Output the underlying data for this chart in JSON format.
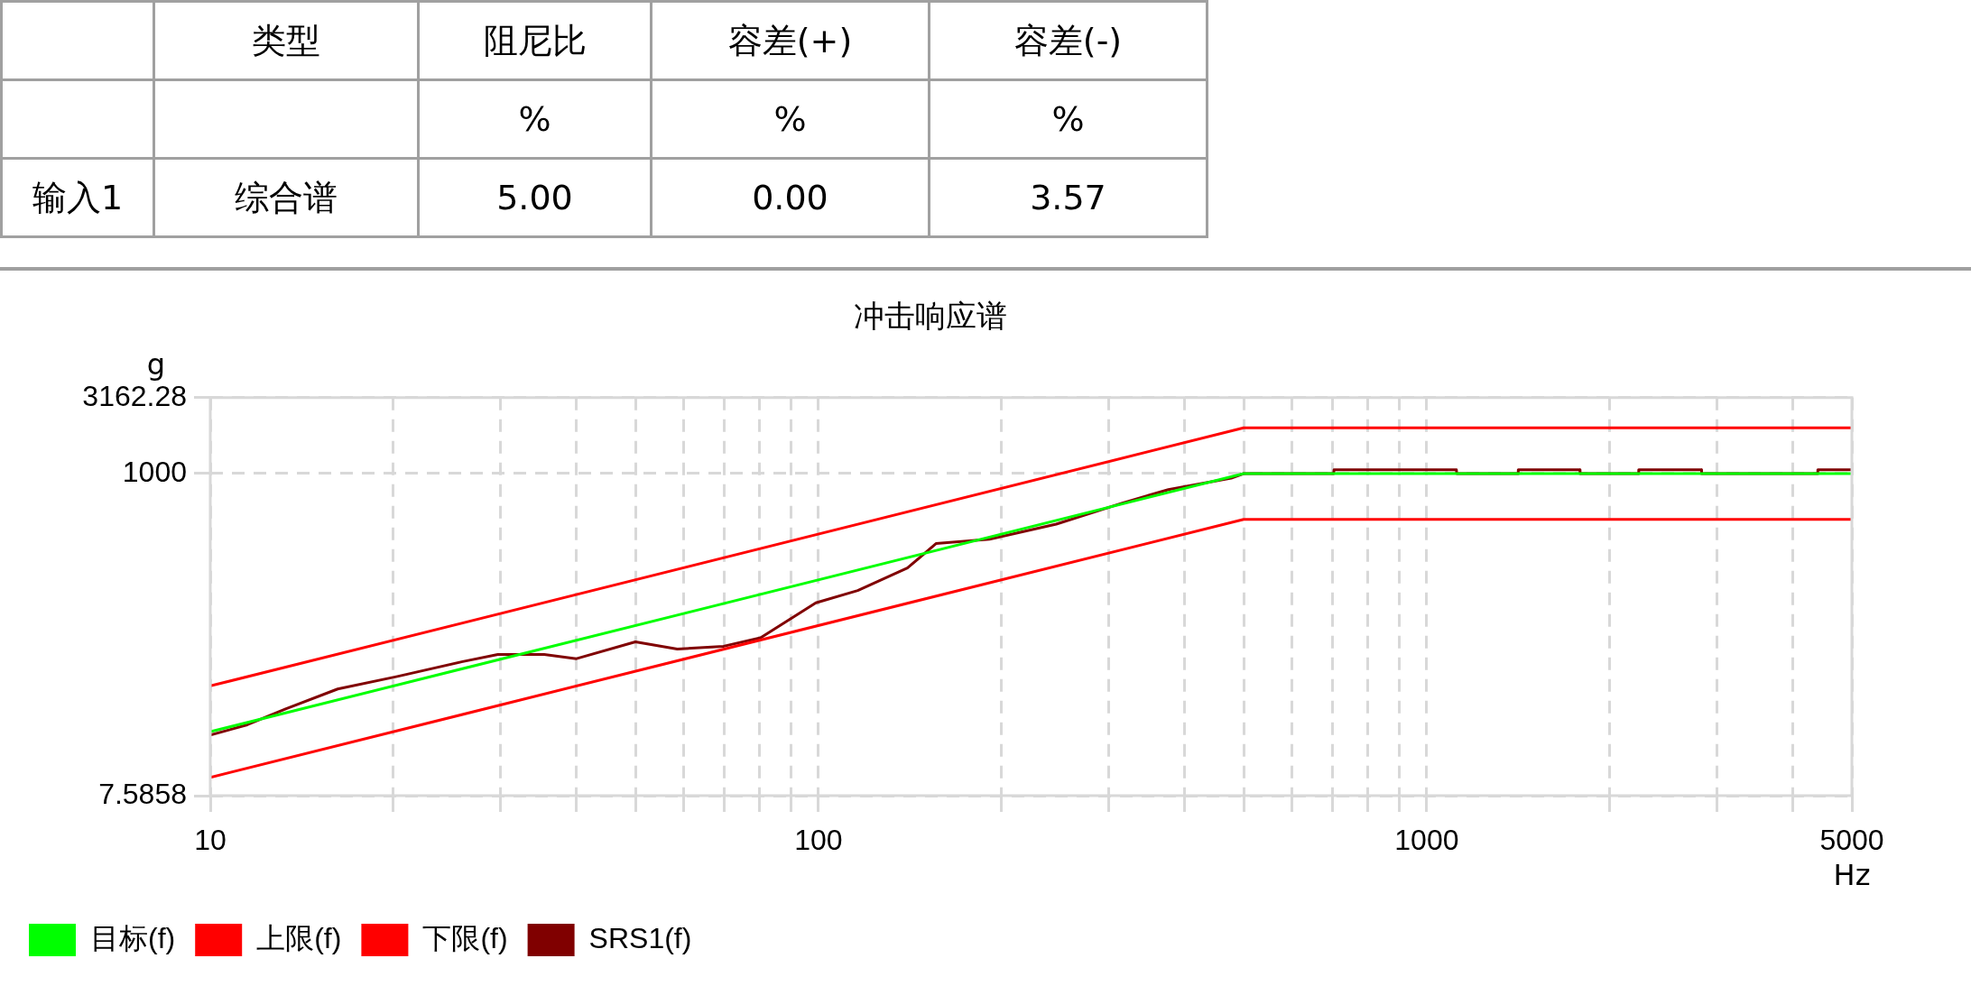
{
  "chart_data": [
    {
      "type": "other",
      "annotations": [
        "类型",
        "阻尼比",
        "容差(+)",
        "容差(-)",
        "%",
        "%",
        "%",
        "输入1",
        "综合谱",
        "5.00",
        "0.00",
        "3.57"
      ]
    },
    {
      "type": "line",
      "title": "冲击响应谱",
      "xlabel": "Hz",
      "ylabel": "g",
      "log": "xy",
      "grid": true,
      "legend": "bottom left",
      "marker": "none",
      "line_style": "solid",
      "xlim": [
        10,
        5000
      ],
      "ylim": [
        7.5858,
        3162.28
      ],
      "xticks": [
        10,
        {
          "value": 20,
          "label": null
        },
        {
          "value": 30,
          "label": null
        },
        {
          "value": 40,
          "label": null
        },
        {
          "value": 50,
          "label": null
        },
        {
          "value": 60,
          "label": null
        },
        {
          "value": 70,
          "label": null
        },
        {
          "value": 80,
          "label": null
        },
        {
          "value": 90,
          "label": null
        },
        100,
        {
          "value": 200,
          "label": null
        },
        {
          "value": 300,
          "label": null
        },
        {
          "value": 400,
          "label": null
        },
        {
          "value": 500,
          "label": null
        },
        {
          "value": 600,
          "label": null
        },
        {
          "value": 700,
          "label": null
        },
        {
          "value": 800,
          "label": null
        },
        {
          "value": 900,
          "label": null
        },
        1000,
        {
          "value": 2000,
          "label": null
        },
        {
          "value": 3000,
          "label": null
        },
        {
          "value": 4000,
          "label": null
        },
        5000
      ],
      "yticks": [
        7.5858,
        1000,
        3162.28
      ],
      "series": [
        {
          "name": "目标(f)",
          "color": "#00ff00",
          "x": [
            10,
            500,
            5000
          ],
          "values": [
            20,
            1000,
            1000
          ]
        },
        {
          "name": "上限(f)",
          "color": "#ff0000",
          "x": [
            10,
            500,
            5000
          ],
          "values": [
            40,
            2000,
            2000
          ]
        },
        {
          "name": "下限(f)",
          "color": "#ff0000",
          "x": [
            10,
            500,
            5000
          ],
          "values": [
            10,
            500,
            500
          ]
        },
        {
          "name": "SRS1(f)",
          "color": "#800000",
          "x": [
            10,
            11.5,
            13.3,
            16.2,
            20.3,
            25.9,
            29.7,
            35.4,
            40,
            50,
            58.6,
            69.8,
            80.3,
            99,
            116,
            140,
            156,
            191,
            246,
            316,
            376,
            477,
            500,
            703,
            704,
            1119,
            1120,
            1413,
            1414,
            1786,
            1787,
            2230,
            2231,
            2830,
            2831,
            4394,
            4395,
            5000
          ],
          "values": [
            19,
            22.2,
            28.2,
            38.2,
            46.2,
            57.7,
            64.4,
            64.4,
            60.5,
            78,
            70,
            73,
            83,
            141,
            170,
            239,
            346,
            370,
            465,
            640,
            785,
            933,
            1000,
            1000,
            1060,
            1060,
            1000,
            1000,
            1060,
            1060,
            1000,
            1000,
            1060,
            1060,
            1000,
            1000,
            1060,
            1060
          ]
        }
      ]
    }
  ]
}
